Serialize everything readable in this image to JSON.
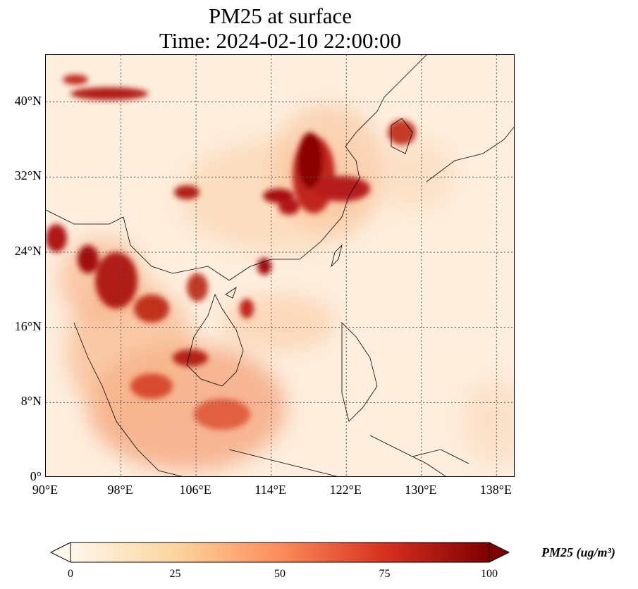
{
  "title": {
    "line1": "PM25 at surface",
    "line2": "Time: 2024-02-10 22:00:00"
  },
  "map": {
    "lon_range": [
      90,
      140
    ],
    "lat_range": [
      0,
      45
    ],
    "lat_ticks": [
      {
        "value": 0,
        "label": "0°"
      },
      {
        "value": 8,
        "label": "8°N"
      },
      {
        "value": 16,
        "label": "16°N"
      },
      {
        "value": 24,
        "label": "24°N"
      },
      {
        "value": 32,
        "label": "32°N"
      },
      {
        "value": 40,
        "label": "40°N"
      }
    ],
    "lon_ticks": [
      {
        "value": 90,
        "label": "90°E"
      },
      {
        "value": 98,
        "label": "98°E"
      },
      {
        "value": 106,
        "label": "106°E"
      },
      {
        "value": 114,
        "label": "114°E"
      },
      {
        "value": 122,
        "label": "122°E"
      },
      {
        "value": 130,
        "label": "130°E"
      },
      {
        "value": 138,
        "label": "138°E"
      }
    ],
    "gridlines": "dotted",
    "colormap": "OrRd",
    "background_color": "#fdecd9"
  },
  "colorbar": {
    "ticks": [
      {
        "value": 0,
        "label": "0"
      },
      {
        "value": 25,
        "label": "25"
      },
      {
        "value": 50,
        "label": "50"
      },
      {
        "value": 75,
        "label": "75"
      },
      {
        "value": 100,
        "label": "100"
      }
    ],
    "label": "PM25 (ug/m³)",
    "extend": "both",
    "colors": [
      "#fff7ec",
      "#fdd49e",
      "#fc8d59",
      "#d7301f",
      "#7f0000"
    ]
  }
}
